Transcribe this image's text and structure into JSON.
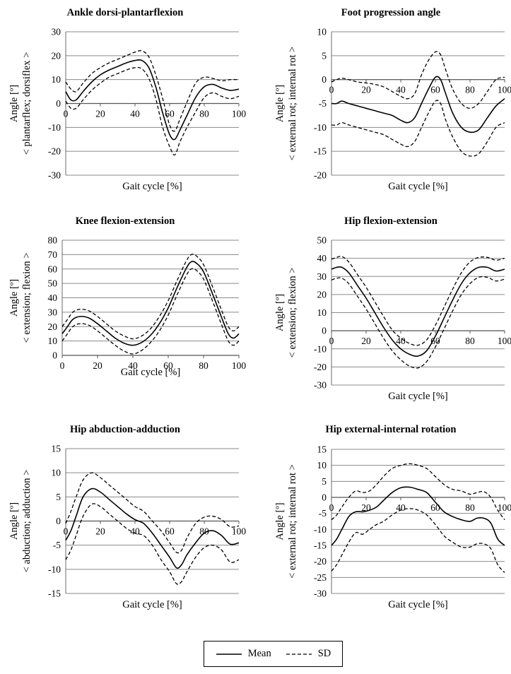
{
  "chart_data": [
    {
      "type": "line",
      "title": "Ankle dorsi-plantarflexion",
      "xlabel": "Gait cycle [%]",
      "ylabel": [
        "Angle [º]",
        "< plantarflex; dorsiflex >"
      ],
      "xlim": [
        0,
        100
      ],
      "ylim": [
        -30,
        30
      ],
      "xticks": [
        0,
        20,
        40,
        60,
        80,
        100
      ],
      "yticks": [
        -30,
        -20,
        -10,
        0,
        10,
        20,
        30
      ],
      "grid": true,
      "x": [
        0,
        3,
        6,
        10,
        15,
        20,
        25,
        30,
        35,
        40,
        44,
        48,
        52,
        56,
        60,
        63,
        66,
        70,
        75,
        80,
        85,
        90,
        95,
        100
      ],
      "series": [
        {
          "name": "Mean",
          "style": "solid",
          "values": [
            5,
            1.5,
            1.5,
            5,
            9,
            12,
            14,
            15.5,
            17,
            18,
            18,
            15,
            7,
            -4,
            -13,
            -15,
            -11,
            -5,
            2.5,
            7,
            8,
            6.5,
            5.5,
            6
          ]
        },
        {
          "name": "SD",
          "style": "dashed",
          "values": [
            9,
            6,
            5,
            8.5,
            12.5,
            15,
            17,
            18.5,
            20,
            21.5,
            22,
            19.5,
            12,
            2,
            -9,
            -11.5,
            -6.5,
            0.5,
            8.5,
            11,
            10.5,
            9.5,
            10,
            10
          ]
        },
        {
          "name": "SD",
          "style": "dashed",
          "values": [
            1,
            -2,
            -2,
            1.5,
            5.5,
            8.5,
            11,
            12.5,
            14,
            15,
            14.5,
            10.5,
            2,
            -10,
            -18,
            -21.5,
            -16,
            -10,
            -3.5,
            2.5,
            4.5,
            3,
            2,
            3
          ]
        }
      ]
    },
    {
      "type": "line",
      "title": "Foot progression angle",
      "xlabel": "Gait cycle [%]",
      "ylabel": [
        "Angle [º]",
        "< external rot; internal rot >"
      ],
      "xlim": [
        0,
        100
      ],
      "ylim": [
        -20,
        10
      ],
      "xticks": [
        0,
        20,
        40,
        60,
        80,
        100
      ],
      "yticks": [
        -20,
        -15,
        -10,
        -5,
        0,
        5,
        10
      ],
      "grid": true,
      "x": [
        0,
        3,
        6,
        10,
        15,
        20,
        25,
        30,
        35,
        40,
        44,
        48,
        52,
        56,
        60,
        63,
        66,
        70,
        75,
        80,
        85,
        90,
        95,
        100
      ],
      "series": [
        {
          "name": "Mean",
          "style": "solid",
          "values": [
            -5,
            -5,
            -4.5,
            -5,
            -5.5,
            -6,
            -6.5,
            -7,
            -7.5,
            -8.5,
            -9,
            -8,
            -5,
            -2,
            0.5,
            0,
            -3,
            -7,
            -10,
            -11,
            -10.5,
            -8,
            -5.5,
            -4
          ]
        },
        {
          "name": "SD",
          "style": "dashed",
          "values": [
            -0.5,
            0,
            0.3,
            0,
            -0.5,
            -0.7,
            -1,
            -1.5,
            -2.5,
            -3.5,
            -4,
            -3,
            1,
            4,
            5.8,
            5.2,
            2,
            -2,
            -5,
            -6,
            -5,
            -2.5,
            0,
            0.5
          ]
        },
        {
          "name": "SD",
          "style": "dashed",
          "values": [
            -9.5,
            -9.5,
            -9,
            -9.5,
            -10,
            -10.5,
            -11,
            -11.5,
            -12.5,
            -13.5,
            -14,
            -13,
            -10,
            -7,
            -4.5,
            -5,
            -8.5,
            -12,
            -15,
            -16,
            -15.5,
            -13,
            -10,
            -9
          ]
        }
      ]
    },
    {
      "type": "line",
      "title": "Knee flexion-extension",
      "xlabel": "Gait cycle [%]",
      "ylabel": [
        "Angle [º]",
        "< extension; flexion >"
      ],
      "xlim": [
        0,
        100
      ],
      "ylim": [
        0,
        80
      ],
      "xticks": [
        0,
        20,
        40,
        60,
        80,
        100
      ],
      "yticks": [
        0,
        10,
        20,
        30,
        40,
        50,
        60,
        70,
        80
      ],
      "grid": true,
      "x": [
        0,
        3,
        6,
        10,
        15,
        20,
        25,
        30,
        35,
        40,
        45,
        50,
        55,
        60,
        65,
        70,
        73,
        76,
        80,
        85,
        90,
        94,
        97,
        100
      ],
      "series": [
        {
          "name": "Mean",
          "style": "solid",
          "values": [
            15,
            20,
            25,
            27,
            26,
            22,
            17,
            12,
            8.5,
            7,
            9,
            14,
            22,
            33,
            47,
            60,
            65,
            64,
            58,
            43,
            27,
            15,
            12,
            15
          ]
        },
        {
          "name": "SD",
          "style": "dashed",
          "values": [
            20,
            25,
            30,
            32,
            31,
            27,
            22,
            17,
            13.5,
            11.5,
            13.5,
            18.5,
            27,
            38,
            52,
            65,
            70,
            69,
            63,
            48,
            32,
            20,
            17,
            20
          ]
        },
        {
          "name": "SD",
          "style": "dashed",
          "values": [
            10,
            15,
            20,
            22,
            21,
            17,
            12,
            7,
            3,
            1,
            3.5,
            9,
            17,
            28,
            42,
            55,
            60,
            59,
            53,
            38,
            22,
            10,
            7,
            10
          ]
        }
      ]
    },
    {
      "type": "line",
      "title": "Hip flexion-extension",
      "xlabel": "Gait cycle [%]",
      "ylabel": [
        "Angle [º]",
        "< extension; flexion >"
      ],
      "xlim": [
        0,
        100
      ],
      "ylim": [
        -30,
        50
      ],
      "xticks": [
        0,
        20,
        40,
        60,
        80,
        100
      ],
      "yticks": [
        -30,
        -20,
        -10,
        0,
        10,
        20,
        30,
        40,
        50
      ],
      "grid": true,
      "x": [
        0,
        3,
        6,
        10,
        15,
        20,
        25,
        30,
        35,
        40,
        45,
        50,
        55,
        60,
        65,
        70,
        75,
        80,
        85,
        90,
        95,
        100
      ],
      "series": [
        {
          "name": "Mean",
          "style": "solid",
          "values": [
            34,
            35,
            35,
            32,
            25,
            18,
            10,
            2,
            -5,
            -10,
            -13,
            -14,
            -11,
            -3,
            7,
            17,
            26,
            32,
            35,
            35,
            33,
            34
          ]
        },
        {
          "name": "SD",
          "style": "dashed",
          "values": [
            39.5,
            40.5,
            41,
            38,
            31,
            24,
            16,
            8,
            0.5,
            -4,
            -7,
            -8,
            -5,
            3,
            13,
            23,
            32,
            38,
            40.5,
            40.5,
            39,
            40
          ]
        },
        {
          "name": "SD",
          "style": "dashed",
          "values": [
            28,
            29,
            29,
            26,
            19,
            12,
            4,
            -4,
            -11,
            -16,
            -19.5,
            -20.5,
            -17,
            -9,
            1,
            11,
            20,
            26,
            29.5,
            29.5,
            27.5,
            28.5
          ]
        }
      ]
    },
    {
      "type": "line",
      "title": "Hip abduction-adduction",
      "xlabel": "Gait cycle [%]",
      "ylabel": [
        "Angle [º]",
        "< abduction; adduction >"
      ],
      "xlim": [
        0,
        100
      ],
      "ylim": [
        -15,
        15
      ],
      "xticks": [
        0,
        20,
        40,
        60,
        80,
        100
      ],
      "yticks": [
        -15,
        -10,
        -5,
        0,
        5,
        10,
        15
      ],
      "grid": true,
      "x": [
        0,
        3,
        6,
        10,
        15,
        20,
        25,
        30,
        35,
        40,
        45,
        50,
        55,
        60,
        64,
        67,
        70,
        75,
        80,
        85,
        90,
        95,
        100
      ],
      "series": [
        {
          "name": "Mean",
          "style": "solid",
          "values": [
            -4,
            -2,
            1,
            5,
            6.7,
            6,
            4.5,
            3,
            1.5,
            0.3,
            -0.5,
            -2.5,
            -5,
            -7.5,
            -9.7,
            -9,
            -7,
            -4.5,
            -2.5,
            -2,
            -3,
            -4.8,
            -4.5
          ]
        },
        {
          "name": "SD",
          "style": "dashed",
          "values": [
            -0.5,
            2,
            5,
            8.5,
            10,
            9,
            7.5,
            6,
            4.5,
            3,
            2,
            0,
            -2,
            -4.5,
            -6.5,
            -6,
            -3.5,
            -0.5,
            0.8,
            1,
            0.3,
            -1.2,
            -1
          ]
        },
        {
          "name": "SD",
          "style": "dashed",
          "values": [
            -8,
            -6,
            -3,
            1,
            3.5,
            3,
            1.5,
            0,
            -1.5,
            -2.5,
            -3,
            -5,
            -8,
            -10.5,
            -13,
            -12.5,
            -10.5,
            -7.5,
            -5.5,
            -5,
            -6,
            -8.5,
            -8
          ]
        }
      ]
    },
    {
      "type": "line",
      "title": "Hip external-internal rotation",
      "xlabel": "Gait cycle [%]",
      "ylabel": [
        "Angle [º]",
        "< external rot; internal rot >"
      ],
      "xlim": [
        0,
        100
      ],
      "ylim": [
        -30,
        15
      ],
      "xticks": [
        0,
        20,
        40,
        60,
        80,
        100
      ],
      "yticks": [
        -30,
        -25,
        -20,
        -15,
        -10,
        -5,
        0,
        5,
        10,
        15
      ],
      "grid": true,
      "x": [
        0,
        3,
        6,
        10,
        14,
        18,
        22,
        26,
        30,
        35,
        40,
        45,
        50,
        55,
        60,
        65,
        70,
        75,
        80,
        84,
        88,
        92,
        96,
        100
      ],
      "series": [
        {
          "name": "Mean",
          "style": "solid",
          "values": [
            -15,
            -13,
            -10,
            -6,
            -4.5,
            -4.5,
            -4,
            -3,
            -1,
            1.5,
            3,
            3.2,
            2.5,
            1.5,
            -1.5,
            -4.5,
            -6,
            -7,
            -7.5,
            -6.5,
            -6.5,
            -8,
            -13,
            -15
          ]
        },
        {
          "name": "SD",
          "style": "dashed",
          "values": [
            -7,
            -5.5,
            -3,
            0,
            2,
            1.5,
            2,
            4,
            6.5,
            9,
            10,
            10.5,
            10,
            9,
            6.5,
            4,
            2.5,
            2,
            1,
            1.5,
            1.8,
            0,
            -4,
            -7
          ]
        },
        {
          "name": "SD",
          "style": "dashed",
          "values": [
            -23,
            -21,
            -18,
            -14,
            -11,
            -11.5,
            -10,
            -8.5,
            -7.5,
            -5.5,
            -4,
            -3.5,
            -4,
            -5.5,
            -8.5,
            -12,
            -14,
            -15.5,
            -15.5,
            -14.5,
            -14.5,
            -16,
            -21,
            -23.5
          ]
        }
      ]
    }
  ],
  "legend": {
    "mean_label": "Mean",
    "sd_label": "SD"
  }
}
